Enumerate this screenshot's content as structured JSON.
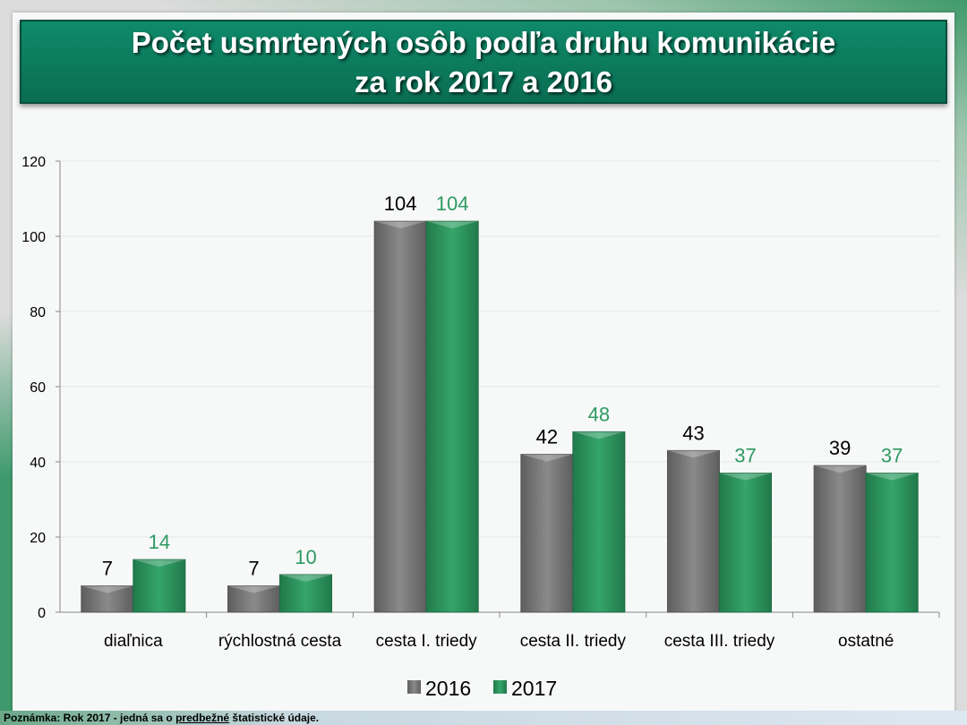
{
  "title": {
    "line1": "Počet usmrtených osôb podľa druhu komunikácie",
    "line2": "za rok 2017 a 2016"
  },
  "note": {
    "prefix": "Poznámka: Rok 2017 - jedná sa o ",
    "emphasis": "predbežné",
    "suffix": " štatistické údaje."
  },
  "chart_data": {
    "type": "bar",
    "title": "Počet usmrtených osôb podľa druhu komunikácie za rok 2017 a 2016",
    "categories": [
      "diaľnica",
      "rýchlostná cesta",
      "cesta I. triedy",
      "cesta II. triedy",
      "cesta III. triedy",
      "ostatné"
    ],
    "series": [
      {
        "name": "2016",
        "values": [
          7,
          7,
          104,
          42,
          43,
          39
        ],
        "color": "#7a7a7a",
        "label_color": "#000000"
      },
      {
        "name": "2017",
        "values": [
          14,
          10,
          104,
          48,
          37,
          37
        ],
        "color": "#2e9a62",
        "label_color": "#2e9a62"
      }
    ],
    "ylim": [
      0,
      120
    ],
    "yticks": [
      0,
      20,
      40,
      60,
      80,
      100,
      120
    ],
    "legend": "bottom",
    "grid": true
  }
}
